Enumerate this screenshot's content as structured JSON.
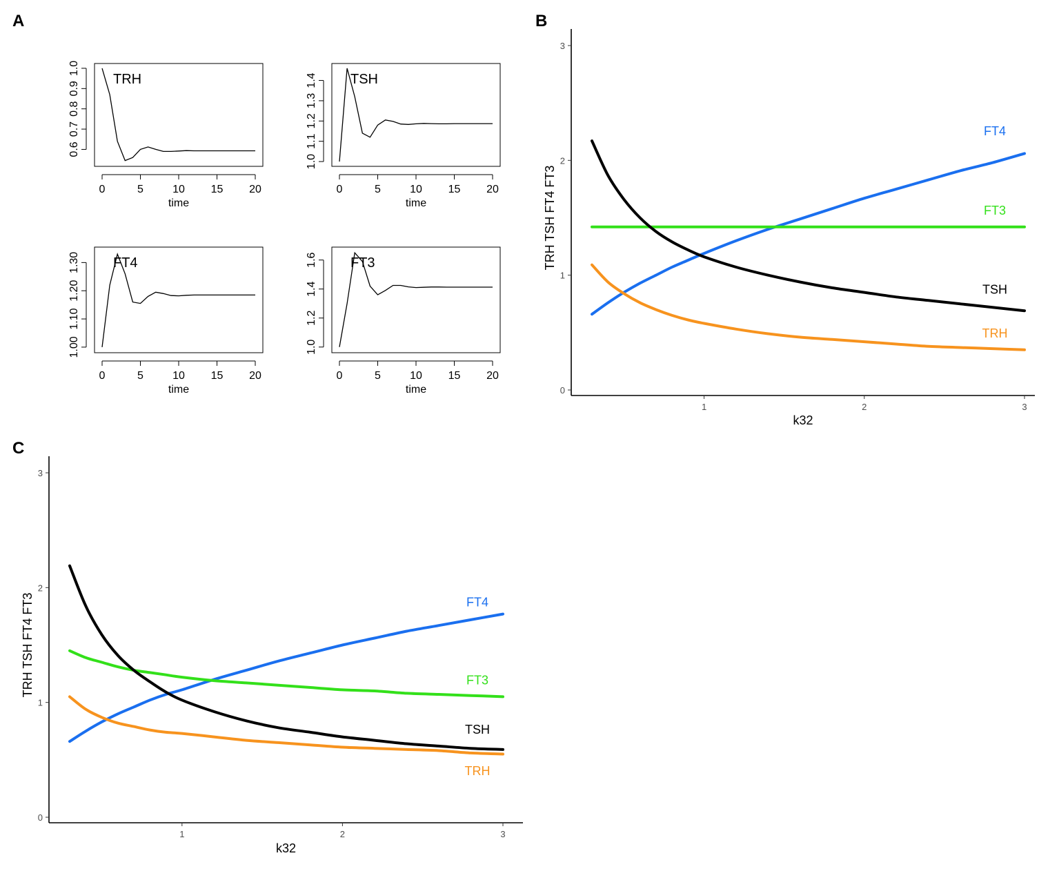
{
  "panel_labels": {
    "a": "A",
    "b": "B",
    "c": "C"
  },
  "colors": {
    "TRH": "#f7931e",
    "TSH": "#000000",
    "FT4": "#1a6fef",
    "FT3": "#33e01a"
  },
  "chart_data": [
    {
      "id": "A-TRH",
      "type": "line",
      "title": "TRH",
      "xlabel": "time",
      "xlim": [
        0,
        20
      ],
      "ylim": [
        0.53,
        1.01
      ],
      "x_ticks": [
        "0",
        "5",
        "10",
        "15",
        "20"
      ],
      "y_ticks": [
        "0.6",
        "0.7",
        "0.8",
        "0.9",
        "1.0"
      ],
      "y_tick_values": [
        0.6,
        0.7,
        0.8,
        0.9,
        1.0
      ],
      "x": [
        0,
        1,
        2,
        3,
        4,
        5,
        6,
        7,
        8,
        9,
        10,
        11,
        12,
        13,
        14,
        15,
        16,
        17,
        18,
        19,
        20
      ],
      "y": [
        1.0,
        0.87,
        0.64,
        0.545,
        0.56,
        0.6,
        0.612,
        0.6,
        0.59,
        0.59,
        0.592,
        0.594,
        0.593,
        0.593,
        0.593,
        0.593,
        0.593,
        0.593,
        0.593,
        0.593,
        0.593
      ]
    },
    {
      "id": "A-TSH",
      "type": "line",
      "title": "TSH",
      "xlabel": "time",
      "xlim": [
        0,
        20
      ],
      "ylim": [
        0.99,
        1.47
      ],
      "x_ticks": [
        "0",
        "5",
        "10",
        "15",
        "20"
      ],
      "y_ticks": [
        "1.0",
        "1.1",
        "1.2",
        "1.3",
        "1.4"
      ],
      "y_tick_values": [
        1.0,
        1.1,
        1.2,
        1.3,
        1.4
      ],
      "x": [
        0,
        1,
        2,
        3,
        4,
        5,
        6,
        7,
        8,
        9,
        10,
        11,
        12,
        13,
        14,
        15,
        16,
        17,
        18,
        19,
        20
      ],
      "y": [
        1.0,
        1.46,
        1.32,
        1.14,
        1.12,
        1.18,
        1.205,
        1.198,
        1.185,
        1.183,
        1.186,
        1.188,
        1.187,
        1.186,
        1.186,
        1.187,
        1.187,
        1.187,
        1.187,
        1.187,
        1.187
      ]
    },
    {
      "id": "A-FT4",
      "type": "line",
      "title": "FT4",
      "xlabel": "time",
      "xlim": [
        0,
        20
      ],
      "ylim": [
        0.99,
        1.345
      ],
      "x_ticks": [
        "0",
        "5",
        "10",
        "15",
        "20"
      ],
      "y_ticks": [
        "1.00",
        "1.10",
        "1.20",
        "1.30"
      ],
      "y_tick_values": [
        1.0,
        1.1,
        1.2,
        1.3
      ],
      "x": [
        0,
        1,
        2,
        3,
        4,
        5,
        6,
        7,
        8,
        9,
        10,
        11,
        12,
        13,
        14,
        15,
        16,
        17,
        18,
        19,
        20
      ],
      "y": [
        1.0,
        1.22,
        1.33,
        1.26,
        1.16,
        1.155,
        1.18,
        1.195,
        1.19,
        1.183,
        1.182,
        1.184,
        1.185,
        1.185,
        1.185,
        1.185,
        1.185,
        1.185,
        1.185,
        1.185,
        1.185
      ]
    },
    {
      "id": "A-FT3",
      "type": "line",
      "title": "FT3",
      "xlabel": "time",
      "xlim": [
        0,
        20
      ],
      "ylim": [
        0.98,
        1.67
      ],
      "x_ticks": [
        "0",
        "5",
        "10",
        "15",
        "20"
      ],
      "y_ticks": [
        "1.0",
        "1.2",
        "1.4",
        "1.6"
      ],
      "y_tick_values": [
        1.0,
        1.2,
        1.4,
        1.6
      ],
      "x": [
        0,
        1,
        2,
        3,
        4,
        5,
        6,
        7,
        8,
        9,
        10,
        11,
        12,
        13,
        14,
        15,
        16,
        17,
        18,
        19,
        20
      ],
      "y": [
        1.0,
        1.3,
        1.65,
        1.59,
        1.42,
        1.36,
        1.39,
        1.425,
        1.425,
        1.415,
        1.41,
        1.412,
        1.414,
        1.414,
        1.413,
        1.413,
        1.413,
        1.413,
        1.413,
        1.413,
        1.413
      ]
    },
    {
      "id": "B",
      "type": "line",
      "xlabel": "k32",
      "ylabel": "TRH TSH FT4 FT3",
      "xlim": [
        0.2,
        3.02
      ],
      "ylim": [
        -0.12,
        3.15
      ],
      "x_ticks": [
        "1",
        "2",
        "3"
      ],
      "x_tick_values": [
        1,
        2,
        3
      ],
      "y_ticks": [
        "0",
        "1",
        "2",
        "3"
      ],
      "y_tick_values": [
        0,
        1,
        2,
        3
      ],
      "x": [
        0.3,
        0.4,
        0.5,
        0.6,
        0.7,
        0.8,
        0.9,
        1.0,
        1.2,
        1.4,
        1.6,
        1.8,
        2.0,
        2.2,
        2.4,
        2.6,
        2.8,
        3.0
      ],
      "series": [
        {
          "name": "FT4",
          "values": [
            0.66,
            0.76,
            0.85,
            0.93,
            1.0,
            1.07,
            1.13,
            1.19,
            1.3,
            1.4,
            1.49,
            1.58,
            1.67,
            1.75,
            1.83,
            1.91,
            1.98,
            2.06
          ]
        },
        {
          "name": "FT3",
          "values": [
            1.42,
            1.42,
            1.42,
            1.42,
            1.42,
            1.42,
            1.42,
            1.42,
            1.42,
            1.42,
            1.42,
            1.42,
            1.42,
            1.42,
            1.42,
            1.42,
            1.42,
            1.42
          ]
        },
        {
          "name": "TSH",
          "values": [
            2.17,
            1.87,
            1.66,
            1.5,
            1.38,
            1.29,
            1.22,
            1.16,
            1.07,
            1.0,
            0.94,
            0.89,
            0.85,
            0.81,
            0.78,
            0.75,
            0.72,
            0.69
          ]
        },
        {
          "name": "TRH",
          "values": [
            1.09,
            0.94,
            0.84,
            0.76,
            0.7,
            0.65,
            0.61,
            0.58,
            0.53,
            0.49,
            0.46,
            0.44,
            0.42,
            0.4,
            0.38,
            0.37,
            0.36,
            0.35
          ]
        }
      ],
      "label_order": [
        "FT4",
        "FT3",
        "TSH",
        "TRH"
      ],
      "label_values": [
        2.26,
        1.57,
        0.88,
        0.5
      ]
    },
    {
      "id": "C",
      "type": "line",
      "xlabel": "k32",
      "ylabel": "TRH TSH FT4 FT3",
      "xlim": [
        0.2,
        3.13
      ],
      "ylim": [
        -0.12,
        3.15
      ],
      "x_ticks": [
        "1",
        "2",
        "3"
      ],
      "x_tick_values": [
        1,
        2,
        3
      ],
      "y_ticks": [
        "0",
        "1",
        "2",
        "3"
      ],
      "y_tick_values": [
        0,
        1,
        2,
        3
      ],
      "x": [
        0.3,
        0.4,
        0.5,
        0.6,
        0.7,
        0.8,
        0.9,
        1.0,
        1.2,
        1.4,
        1.6,
        1.8,
        2.0,
        2.2,
        2.4,
        2.6,
        2.8,
        3.0
      ],
      "series": [
        {
          "name": "FT4",
          "values": [
            0.66,
            0.75,
            0.83,
            0.9,
            0.96,
            1.02,
            1.07,
            1.11,
            1.2,
            1.28,
            1.36,
            1.43,
            1.5,
            1.56,
            1.62,
            1.67,
            1.72,
            1.77
          ]
        },
        {
          "name": "FT3",
          "values": [
            1.45,
            1.39,
            1.35,
            1.31,
            1.28,
            1.26,
            1.24,
            1.22,
            1.19,
            1.17,
            1.15,
            1.13,
            1.11,
            1.1,
            1.08,
            1.07,
            1.06,
            1.05
          ]
        },
        {
          "name": "TSH",
          "values": [
            2.19,
            1.84,
            1.59,
            1.41,
            1.28,
            1.18,
            1.09,
            1.02,
            0.92,
            0.84,
            0.78,
            0.74,
            0.7,
            0.67,
            0.64,
            0.62,
            0.6,
            0.59
          ]
        },
        {
          "name": "TRH",
          "values": [
            1.05,
            0.94,
            0.87,
            0.82,
            0.79,
            0.76,
            0.74,
            0.73,
            0.7,
            0.67,
            0.65,
            0.63,
            0.61,
            0.6,
            0.59,
            0.58,
            0.56,
            0.55
          ]
        }
      ],
      "label_order": [
        "FT4",
        "FT3",
        "TSH",
        "TRH"
      ],
      "label_values": [
        1.88,
        1.2,
        0.77,
        0.41
      ]
    }
  ]
}
